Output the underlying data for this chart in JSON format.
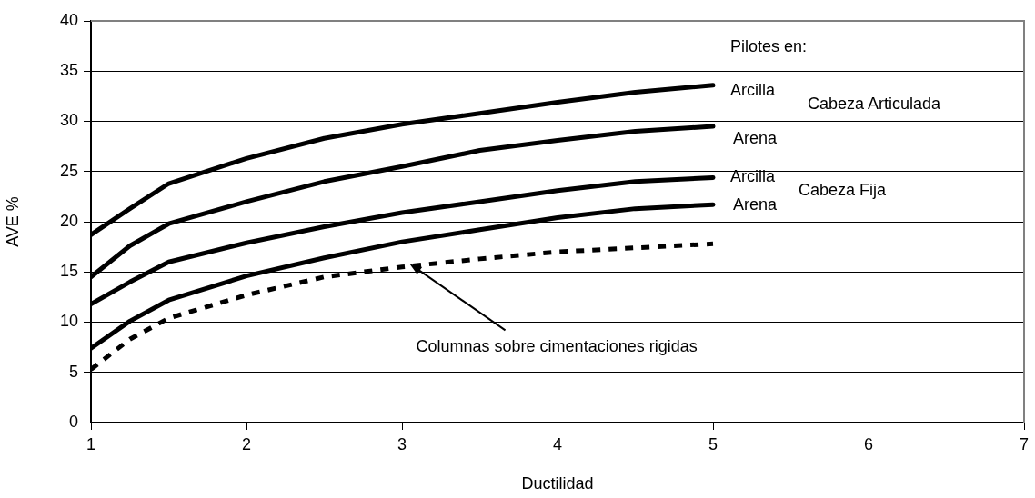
{
  "chart_data": {
    "type": "line",
    "xlabel": "Ductilidad",
    "ylabel": "AVE %",
    "x": [
      1,
      1.25,
      1.5,
      2,
      2.5,
      3,
      3.5,
      4,
      4.5,
      5
    ],
    "series": [
      {
        "color": "#000000",
        "values": [
          18.7,
          21.3,
          23.8,
          26.3,
          28.3,
          29.7,
          30.8,
          31.9,
          32.9,
          33.6
        ]
      },
      {
        "color": "#000000",
        "values": [
          14.5,
          17.6,
          19.8,
          22.0,
          24.0,
          25.5,
          27.1,
          28.1,
          29.0,
          29.5
        ]
      },
      {
        "color": "#000000",
        "values": [
          11.8,
          14.0,
          16.0,
          17.9,
          19.5,
          20.9,
          22.0,
          23.1,
          24.0,
          24.4
        ]
      },
      {
        "color": "#000000",
        "values": [
          7.4,
          10.1,
          12.2,
          14.6,
          16.4,
          18.0,
          19.2,
          20.4,
          21.3,
          21.7
        ]
      },
      {
        "color": "#000000",
        "line_style": "dashed",
        "values": [
          5.3,
          8.3,
          10.4,
          12.7,
          14.5,
          15.5,
          16.3,
          17.0,
          17.4,
          17.8
        ]
      }
    ],
    "xlim": [
      1,
      7
    ],
    "xticks": [
      1,
      2,
      3,
      4,
      5,
      6,
      7
    ],
    "ylim": [
      0,
      40
    ],
    "yticks": [
      0,
      5,
      10,
      15,
      20,
      25,
      30,
      35,
      40
    ],
    "grid": "y",
    "legend": false,
    "marker": "none",
    "line_style": "solid",
    "annotations": [
      "Pilotes en:",
      "Arcilla",
      "Cabeza Articulada",
      "Arena",
      "Arcilla",
      "Cabeza Fija",
      "Arena",
      {
        "text": "Columnas sobre cimentaciones rigidas",
        "x": 3.05,
        "y": 15.8
      }
    ]
  }
}
